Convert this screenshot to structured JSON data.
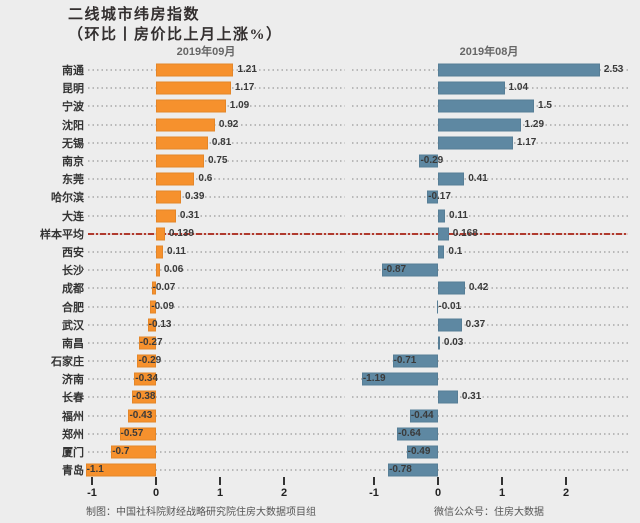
{
  "title": {
    "line1": "二线城市纬房指数",
    "line2": "（环比丨房价比上月上涨%）"
  },
  "footer": {
    "left": "制图：中国社科院财经战略研究院住房大数据项目组",
    "right": "微信公众号：住房大数据"
  },
  "colors": {
    "background": "#ededed",
    "september_bar": "#f6912d",
    "august_bar": "#5e88a2",
    "average_line": "#b03a2e",
    "leader_dots": "#b9b9b9"
  },
  "chart_data": {
    "type": "bar",
    "orientation": "horizontal",
    "title": "二线城市纬房指数（环比丨房价比上月上涨%）",
    "categories": [
      "南通",
      "昆明",
      "宁波",
      "沈阳",
      "无锡",
      "南京",
      "东莞",
      "哈尔滨",
      "大连",
      "样本平均",
      "西安",
      "长沙",
      "成都",
      "合肥",
      "武汉",
      "南昌",
      "石家庄",
      "济南",
      "长春",
      "福州",
      "郑州",
      "厦门",
      "青岛"
    ],
    "series": [
      {
        "name": "2019年09月",
        "color": "#f6912d",
        "values": [
          1.21,
          1.17,
          1.09,
          0.92,
          0.81,
          0.75,
          0.6,
          0.39,
          0.31,
          0.139,
          0.11,
          0.06,
          -0.07,
          -0.09,
          -0.13,
          -0.27,
          -0.29,
          -0.34,
          -0.38,
          -0.43,
          -0.57,
          -0.7,
          -1.1
        ],
        "labels": [
          "1.21",
          "1.17",
          "1.09",
          "0.92",
          "0.81",
          "0.75",
          "0.6",
          "0.39",
          "0.31",
          "0.139",
          "0.11",
          "0.06",
          "-0.07",
          "-0.09",
          "-0.13",
          "-0.27",
          "-0.29",
          "-0.34",
          "-0.38",
          "-0.43",
          "-0.57",
          "-0.7",
          "-1.1"
        ]
      },
      {
        "name": "2019年08月",
        "color": "#5e88a2",
        "values": [
          2.53,
          1.04,
          1.5,
          1.29,
          1.17,
          -0.29,
          0.41,
          -0.17,
          0.11,
          0.168,
          0.1,
          -0.87,
          0.42,
          -0.01,
          0.37,
          0.03,
          -0.71,
          -1.19,
          0.31,
          -0.44,
          -0.64,
          -0.49,
          -0.78
        ],
        "labels": [
          "2.53",
          "1.04",
          "1.5",
          "1.29",
          "1.17",
          "-0.29",
          "0.41",
          "-0.17",
          "0.11",
          "0.168",
          "0.1",
          "-0.87",
          "0.42",
          "-0.01",
          "0.37",
          "0.03",
          "-0.71",
          "-1.19",
          "0.31",
          "-0.44",
          "-0.64",
          "-0.49",
          "-0.78"
        ]
      }
    ],
    "highlight_category": "样本平均",
    "highlight_line_style": "red dash-dot across both panels",
    "x_ticks": [
      -1,
      0,
      1,
      2
    ],
    "x_tick_labels": [
      "-1",
      "0",
      "1",
      "2"
    ],
    "xlim": [
      -1.45,
      3.0
    ],
    "grid": "dotted horizontal leaders per row",
    "legend_position": "panel headers above each facet",
    "value_labels": true
  }
}
